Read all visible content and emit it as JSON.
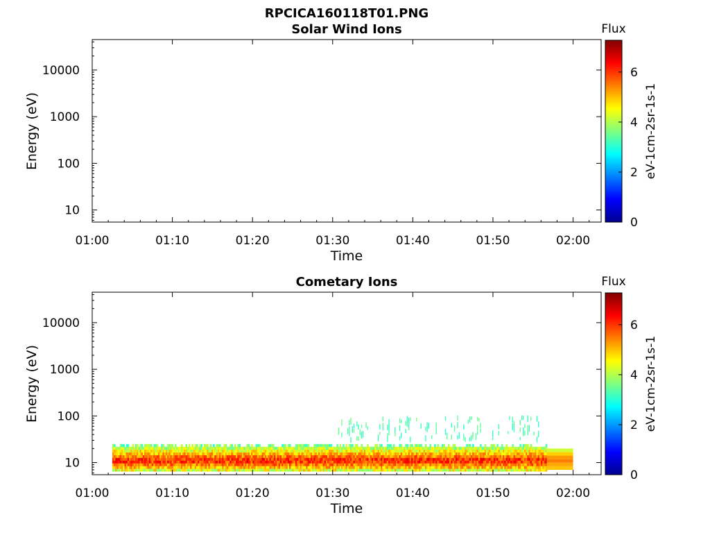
{
  "main_title": "RPCICA160118T01.PNG",
  "chart_data": [
    {
      "type": "heatmap",
      "title": "Solar Wind Ions",
      "xlabel": "Time",
      "ylabel": "Energy (eV)",
      "x_ticks": [
        "01:00",
        "01:10",
        "01:20",
        "01:30",
        "01:40",
        "01:50",
        "02:00"
      ],
      "x_range_minutes": [
        0,
        63.5
      ],
      "y_ticks": [
        10,
        100,
        1000,
        10000
      ],
      "y_tick_labels": [
        "10",
        "100",
        "1000",
        "10000"
      ],
      "y_scale": "log",
      "y_range": [
        5.5,
        45000
      ],
      "colorbar": {
        "title": "Flux",
        "label": "eV-1cm-2sr-1s-1",
        "ticks": [
          0,
          2,
          4,
          6
        ],
        "tick_labels": [
          "0",
          "2",
          "4",
          "6"
        ],
        "range": [
          0,
          7.3
        ]
      },
      "data_regions": []
    },
    {
      "type": "heatmap",
      "title": "Cometary Ions",
      "xlabel": "Time",
      "ylabel": "Energy (eV)",
      "x_ticks": [
        "01:00",
        "01:10",
        "01:20",
        "01:30",
        "01:40",
        "01:50",
        "02:00"
      ],
      "x_range_minutes": [
        0,
        63.5
      ],
      "y_ticks": [
        10,
        100,
        1000,
        10000
      ],
      "y_tick_labels": [
        "10",
        "100",
        "1000",
        "10000"
      ],
      "y_scale": "log",
      "y_range": [
        5.5,
        45000
      ],
      "colorbar": {
        "title": "Flux",
        "label": "eV-1cm-2sr-1s-1",
        "ticks": [
          0,
          2,
          4,
          6
        ],
        "tick_labels": [
          "0",
          "2",
          "4",
          "6"
        ],
        "range": [
          0,
          7.3
        ]
      },
      "data_regions": [
        {
          "t_start": 2.5,
          "t_end": 56.7,
          "e_low": 6.5,
          "e_high": 25,
          "flux_level": "4-6.5 (yellow-orange, peak near 10 eV)",
          "pattern": "dense noisy band"
        },
        {
          "t_start": 56.7,
          "t_end": 60,
          "e_low": 7,
          "e_high": 20,
          "flux_level": "4.5-5.5 (yellow-orange)",
          "pattern": "uniform horizontal bands"
        },
        {
          "t_start": 30.5,
          "t_end": 56,
          "e_low": 30,
          "e_high": 90,
          "flux_level": "3-3.5 (green)",
          "pattern": "sparse streaks"
        }
      ]
    }
  ]
}
